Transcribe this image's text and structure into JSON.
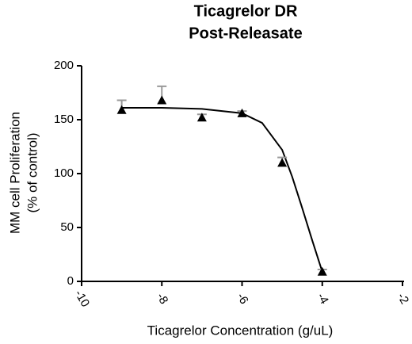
{
  "chart_data": {
    "type": "scatter",
    "title": [
      "Ticagrelor DR",
      "Post-Releasate"
    ],
    "x_label": "Ticagrelor Concentration (g/uL)",
    "y_label": [
      "MM cell Proliferation",
      "(% of control)"
    ],
    "x": [
      -9,
      -8,
      -7,
      -6,
      -5,
      -4
    ],
    "values": [
      159,
      168,
      152,
      156,
      110,
      9
    ],
    "errors": [
      9,
      13,
      3,
      2,
      5,
      2
    ],
    "color": "#000000",
    "error_color": "#999999",
    "fit": {
      "x": [
        -9,
        -8,
        -7,
        -6,
        -5.5,
        -5,
        -4.75,
        -4.5,
        -4.25,
        -4
      ],
      "values": [
        161,
        161,
        160,
        156,
        147,
        122,
        97,
        68,
        38,
        9
      ]
    },
    "xlim": [
      -10,
      -2
    ],
    "xticks": [
      -10,
      -8,
      -6,
      -4,
      -2
    ],
    "ylim": [
      0,
      200
    ],
    "yticks": [
      0,
      50,
      100,
      150,
      200
    ]
  }
}
